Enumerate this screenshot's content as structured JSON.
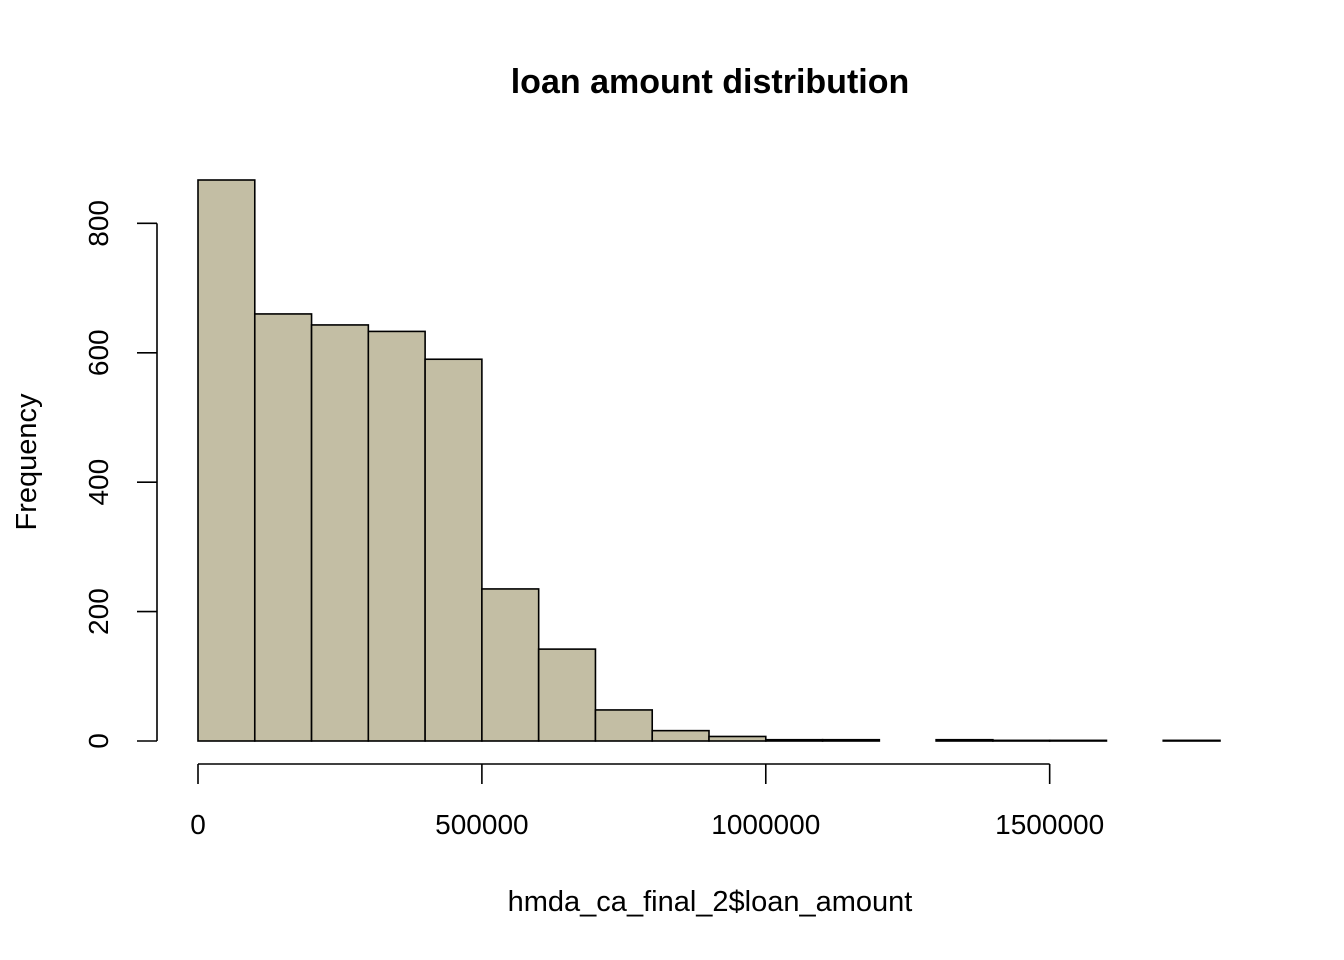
{
  "chart_data": {
    "type": "bar",
    "subtype": "histogram",
    "title": "loan amount distribution",
    "xlabel": "hmda_ca_final_2$loan_amount",
    "ylabel": "Frequency",
    "bin_width": 100000,
    "bins": [
      {
        "start": 0,
        "end": 100000,
        "count": 867
      },
      {
        "start": 100000,
        "end": 200000,
        "count": 660
      },
      {
        "start": 200000,
        "end": 300000,
        "count": 643
      },
      {
        "start": 300000,
        "end": 400000,
        "count": 633
      },
      {
        "start": 400000,
        "end": 500000,
        "count": 590
      },
      {
        "start": 500000,
        "end": 600000,
        "count": 235
      },
      {
        "start": 600000,
        "end": 700000,
        "count": 142
      },
      {
        "start": 700000,
        "end": 800000,
        "count": 48
      },
      {
        "start": 800000,
        "end": 900000,
        "count": 16
      },
      {
        "start": 900000,
        "end": 1000000,
        "count": 7
      },
      {
        "start": 1000000,
        "end": 1100000,
        "count": 2
      },
      {
        "start": 1100000,
        "end": 1200000,
        "count": 2
      },
      {
        "start": 1200000,
        "end": 1300000,
        "count": 0
      },
      {
        "start": 1300000,
        "end": 1400000,
        "count": 2
      },
      {
        "start": 1400000,
        "end": 1500000,
        "count": 1
      },
      {
        "start": 1500000,
        "end": 1600000,
        "count": 1
      },
      {
        "start": 1600000,
        "end": 1700000,
        "count": 0
      },
      {
        "start": 1700000,
        "end": 1800000,
        "count": 1
      }
    ],
    "xlim": [
      0,
      1800000
    ],
    "ylim": [
      0,
      867
    ],
    "xticks": [
      0,
      500000,
      1000000,
      1500000
    ],
    "xtick_labels": [
      "0",
      "500000",
      "1000000",
      "1500000"
    ],
    "yticks": [
      0,
      200,
      400,
      600,
      800
    ],
    "ytick_labels": [
      "0",
      "200",
      "400",
      "600",
      "800"
    ],
    "grid": false,
    "legend": "none",
    "bar_color": "#c3bea4",
    "edge_color": "#000000"
  }
}
